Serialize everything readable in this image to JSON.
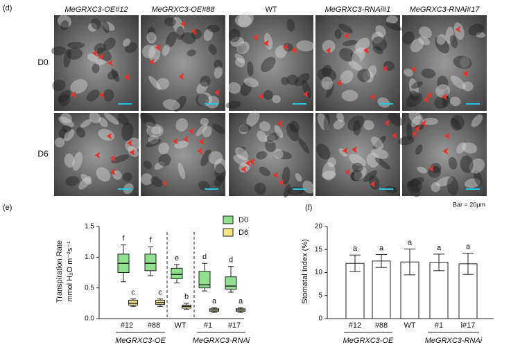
{
  "panel_d": {
    "label": "(d)",
    "columns": [
      "MeGRXC3-OE#12",
      "MeGRXC3-OE#88",
      "WT",
      "MeGRXC3-RNAi#1",
      "MeGRXC3-RNAi#17"
    ],
    "rows": [
      "D0",
      "D6"
    ],
    "scale_note": "Bar = 20μm"
  },
  "chart_data": [
    {
      "type": "box",
      "label": "(e)",
      "ylabel": "Transpiration Rate",
      "ylabel_unit": "mmol H₂O m⁻²s⁻¹",
      "categories": [
        "#12",
        "#88",
        "WT",
        "#1",
        "#17"
      ],
      "groups": [
        {
          "name": "MeGRXC3-OE",
          "from": 0,
          "to": 1
        },
        {
          "name": "MeGRXC3-RNAi",
          "from": 3,
          "to": 4
        }
      ],
      "ylim": [
        0,
        1.5
      ],
      "yticks": [
        {
          "value": 0,
          "label": "0.0"
        },
        {
          "value": 0.5,
          "label": "0.5"
        },
        {
          "value": 1,
          "label": "1.0"
        },
        {
          "value": 1.5,
          "label": "1.5"
        }
      ],
      "series": [
        {
          "name": "D0",
          "color": "#90e090",
          "min": [
            0.6,
            0.7,
            0.58,
            0.45,
            0.43
          ],
          "q1": [
            0.75,
            0.78,
            0.65,
            0.5,
            0.48
          ],
          "median": [
            0.9,
            0.9,
            0.72,
            0.55,
            0.53
          ],
          "q3": [
            1.05,
            1.05,
            0.82,
            0.77,
            0.68
          ],
          "max": [
            1.2,
            1.17,
            0.88,
            0.9,
            0.85
          ],
          "letters": [
            "f",
            "f",
            "e",
            "d",
            "d"
          ]
        },
        {
          "name": "D6",
          "color": "#f5e68c",
          "min": [
            0.2,
            0.2,
            0.15,
            0.1,
            0.1
          ],
          "q1": [
            0.22,
            0.23,
            0.17,
            0.12,
            0.12
          ],
          "median": [
            0.25,
            0.26,
            0.2,
            0.14,
            0.14
          ],
          "q3": [
            0.3,
            0.3,
            0.22,
            0.16,
            0.16
          ],
          "max": [
            0.32,
            0.32,
            0.25,
            0.18,
            0.18
          ],
          "letters": [
            "c",
            "c",
            "b",
            "a",
            "a"
          ]
        }
      ]
    },
    {
      "type": "bar",
      "label": "(f)",
      "ylabel": "Stomatal Index (%)",
      "categories": [
        "#12",
        "#88",
        "WT",
        "#1",
        "i#17"
      ],
      "groups": [
        {
          "name": "MeGRXC3-OE",
          "from": 0,
          "to": 1
        },
        {
          "name": "MeGRXC3-RNAi",
          "from": 3,
          "to": 4
        }
      ],
      "ylim": [
        0,
        20
      ],
      "yticks": [
        0,
        5,
        10,
        15,
        20
      ],
      "values": [
        12,
        12.5,
        12.3,
        12.2,
        11.9
      ],
      "errors": [
        1.8,
        1.4,
        2.8,
        1.8,
        2.3
      ],
      "letters": [
        "a",
        "a",
        "a",
        "a",
        "a"
      ],
      "color": "#ffffff"
    }
  ]
}
